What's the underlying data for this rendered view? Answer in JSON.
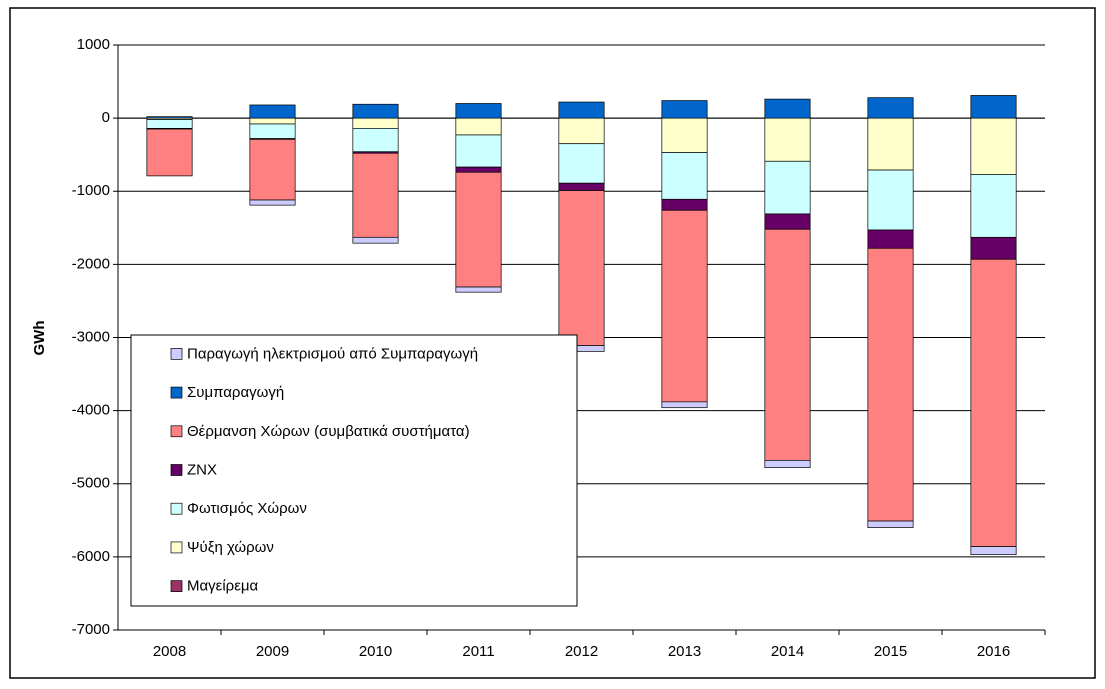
{
  "chart_data": {
    "type": "bar",
    "stacked": true,
    "y_label": "GWh",
    "categories": [
      "2008",
      "2009",
      "2010",
      "2011",
      "2012",
      "2013",
      "2014",
      "2015",
      "2016"
    ],
    "series": [
      {
        "name": "Παραγωγή ηλεκτρισμού από Συμπαραγωγή",
        "color": "#ccccff",
        "values": [
          0,
          -70,
          -80,
          -70,
          -80,
          -80,
          -100,
          -90,
          -110
        ]
      },
      {
        "name": "Συμπαραγωγή",
        "color": "#0066cc",
        "values": [
          20,
          180,
          190,
          200,
          220,
          240,
          260,
          280,
          310
        ]
      },
      {
        "name": "Θέρμανση Χώρων (συμβατικά συστήματα)",
        "color": "#ff8080",
        "values": [
          -640,
          -830,
          -1150,
          -1570,
          -2120,
          -2620,
          -3160,
          -3730,
          -3930
        ]
      },
      {
        "name": "ZNX",
        "color": "#660066",
        "values": [
          -10,
          -10,
          -20,
          -70,
          -100,
          -150,
          -210,
          -250,
          -300
        ]
      },
      {
        "name": "Φωτισμός Χώρων",
        "color": "#ccffff",
        "values": [
          -120,
          -200,
          -320,
          -440,
          -540,
          -640,
          -720,
          -820,
          -860
        ]
      },
      {
        "name": "Ψύξη χώρων",
        "color": "#ffffcc",
        "values": [
          -20,
          -80,
          -140,
          -230,
          -350,
          -470,
          -590,
          -710,
          -770
        ]
      },
      {
        "name": "Μαγείρεμα",
        "color": "#993366",
        "values": [
          0,
          0,
          0,
          0,
          0,
          0,
          0,
          0,
          0
        ]
      }
    ],
    "ylim": [
      -7000,
      1000
    ],
    "yticks": [
      1000,
      0,
      -1000,
      -2000,
      -3000,
      -4000,
      -5000,
      -6000,
      -7000
    ],
    "grid": true,
    "legend": "lower left"
  }
}
